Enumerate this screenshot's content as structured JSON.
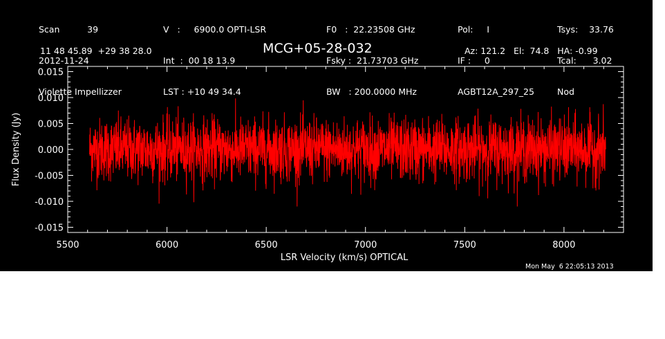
{
  "header": {
    "col1": [
      "Scan          39",
      "2012-11-24",
      "Violette Impellizzer"
    ],
    "col2": [
      "V   :     6900.0 OPTI-LSR",
      "Int  :  00 18 13.9",
      "LST : +10 49 34.4"
    ],
    "col3": [
      "F0   :  22.23508 GHz",
      "Fsky :  21.73703 GHz",
      "BW   : 200.0000 MHz"
    ],
    "col4": [
      "Pol:     I",
      "IF :     0",
      "AGBT12A_297_25"
    ],
    "col5": [
      "Tsys:    33.76",
      "Tcal:      3.02",
      "Nod"
    ],
    "coords": "11 48 45.89  +29 38 28.0",
    "source": "MCG+05-28-032",
    "azel": "Az: 121.2   El:  74.8   HA: -0.99",
    "timestamp": "Mon May  6 22:05:13 2013"
  },
  "colors": {
    "background": "#000000",
    "axes": "#ffffff",
    "series": "#ff0000",
    "page": "#ffffff"
  },
  "chart_data": {
    "type": "line",
    "xlabel": "LSR Velocity (km/s) OPTICAL",
    "ylabel": "Flux Density (Jy)",
    "xlim": [
      5500,
      8300
    ],
    "ylim": [
      -0.016,
      0.016
    ],
    "x_ticks": [
      5500,
      6000,
      6500,
      7000,
      7500,
      8000
    ],
    "x_tick_labels": [
      "5500",
      "6000",
      "6500",
      "7000",
      "7500",
      "8000"
    ],
    "y_ticks": [
      -0.015,
      -0.01,
      -0.005,
      0.0,
      0.005,
      0.01,
      0.015
    ],
    "y_tick_labels": [
      "-0.015",
      "-0.010",
      "-0.005",
      "0.000",
      "0.005",
      "0.010",
      "0.015"
    ],
    "grid": false,
    "series": [
      {
        "x_range": [
          5610,
          8210
        ],
        "mean": 0.0,
        "rms": 0.003,
        "peak_max": 0.011,
        "peak_min": -0.011
      }
    ]
  }
}
